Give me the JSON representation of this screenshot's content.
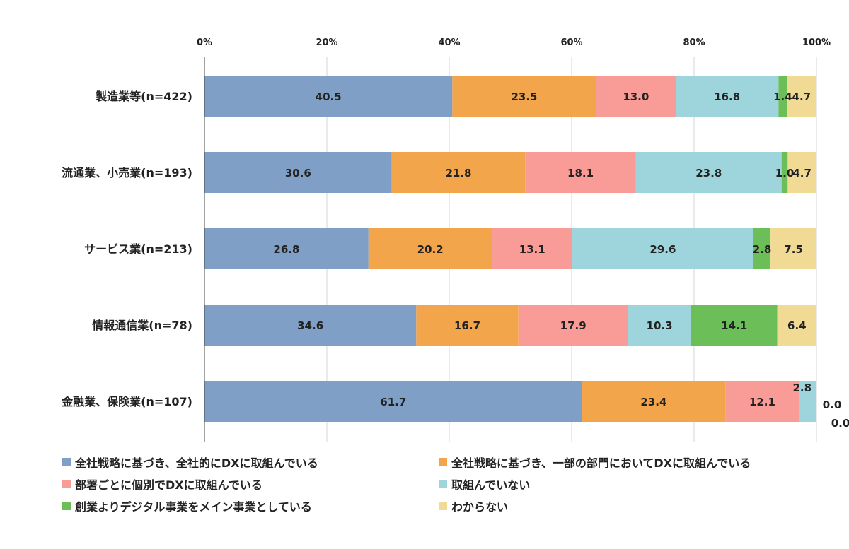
{
  "chart_data": {
    "type": "bar",
    "orientation": "horizontal",
    "stacked": true,
    "percent": true,
    "xlim": [
      0,
      100
    ],
    "x_ticks": [
      "0%",
      "20%",
      "40%",
      "60%",
      "80%",
      "100%"
    ],
    "tick_values": [
      0,
      20,
      40,
      60,
      80,
      100
    ],
    "grid": true,
    "legend_position": "bottom",
    "categories": [
      "製造業等(n=422)",
      "流通業、小売業(n=193)",
      "サービス業(n=213)",
      "情報通信業(n=78)",
      "金融業、保険業(n=107)"
    ],
    "series": [
      {
        "name": "全社戦略に基づき、全社的にDXに取組んでいる",
        "color": "#7f9fc6",
        "values": [
          40.5,
          30.6,
          26.8,
          34.6,
          61.7
        ],
        "labels": [
          "40.5",
          "30.6",
          "26.8",
          "34.6",
          "61.7"
        ]
      },
      {
        "name": "全社戦略に基づき、一部の部門においてDXに取組んでいる",
        "color": "#f2a54b",
        "values": [
          23.5,
          21.8,
          20.2,
          16.7,
          23.4
        ],
        "labels": [
          "23.5",
          "21.8",
          "20.2",
          "16.7",
          "23.4"
        ]
      },
      {
        "name": "部署ごとに個別でDXに取組んでいる",
        "color": "#f99b97",
        "values": [
          13.0,
          18.1,
          13.1,
          17.9,
          12.1
        ],
        "labels": [
          "13.0",
          "18.1",
          "13.1",
          "17.9",
          "12.1"
        ]
      },
      {
        "name": "取組んでいない",
        "color": "#9ed5dc",
        "values": [
          16.8,
          23.8,
          29.6,
          10.3,
          2.8
        ],
        "labels": [
          "16.8",
          "23.8",
          "29.6",
          "10.3",
          "2.8"
        ]
      },
      {
        "name": "創業よりデジタル事業をメイン事業としている",
        "color": "#6cbf58",
        "values": [
          1.4,
          1.0,
          2.8,
          14.1,
          0.0
        ],
        "labels": [
          "1.4",
          "1.0",
          "2.8",
          "14.1",
          "0.0"
        ]
      },
      {
        "name": "わからない",
        "color": "#f0da94",
        "values": [
          4.7,
          4.7,
          7.5,
          6.4,
          0.0
        ],
        "labels": [
          "4.7",
          "4.7",
          "7.5",
          "6.4",
          "0.0"
        ]
      }
    ]
  }
}
